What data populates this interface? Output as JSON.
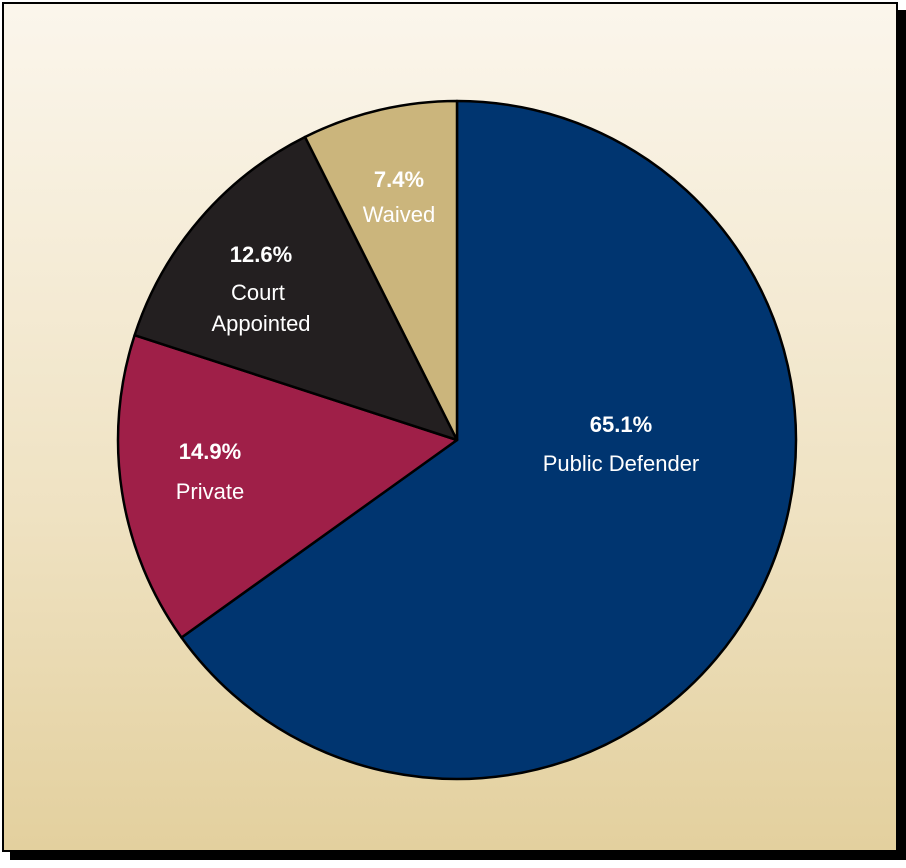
{
  "chart_data": {
    "type": "pie",
    "start_angle_deg": 0,
    "direction": "clockwise",
    "slices": [
      {
        "name": "Public Defender",
        "percent_label": "65.1%",
        "value": 65.1,
        "color": "#003570"
      },
      {
        "name": "Private",
        "percent_label": "14.9%",
        "value": 14.9,
        "color": "#9f1f48"
      },
      {
        "name": "Court\nAppointed",
        "percent_label": "12.6%",
        "value": 12.6,
        "color": "#231f20"
      },
      {
        "name": "Waived",
        "percent_label": "7.4%",
        "value": 7.4,
        "color": "#cbb57c"
      }
    ],
    "legend": "none",
    "title": ""
  },
  "colors": {
    "background_top": "#fbf6ec",
    "background_bottom": "#e3d09e",
    "border": "#000000",
    "slice_stroke": "#000000"
  }
}
